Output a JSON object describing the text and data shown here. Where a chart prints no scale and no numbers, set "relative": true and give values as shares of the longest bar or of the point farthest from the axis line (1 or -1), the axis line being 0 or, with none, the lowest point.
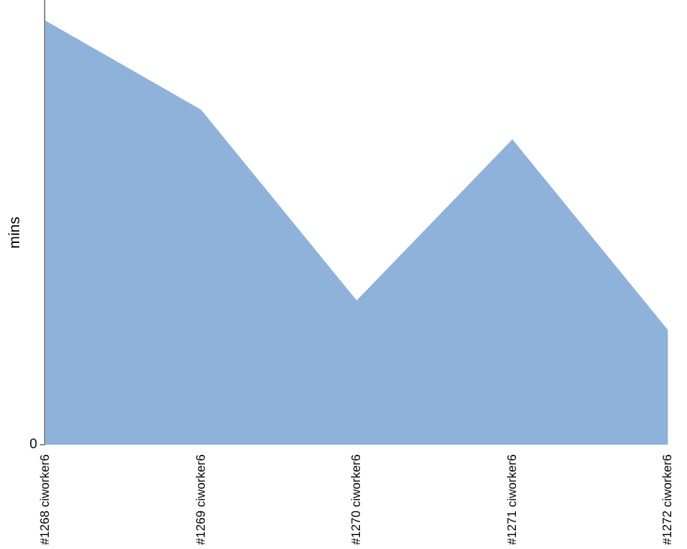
{
  "chart_data": {
    "type": "area",
    "relative": true,
    "ylabel": "mins",
    "annotations": [
      "0"
    ],
    "categories": [
      "#1268 ciworker6",
      "#1269 ciworker6",
      "#1270 ciworker6",
      "#1271 ciworker6",
      "#1272 ciworker6"
    ],
    "values": [
      1,
      0.79,
      0.34,
      0.72,
      0.27
    ],
    "color": "#8fb2da",
    "grid": false,
    "legend": false
  }
}
